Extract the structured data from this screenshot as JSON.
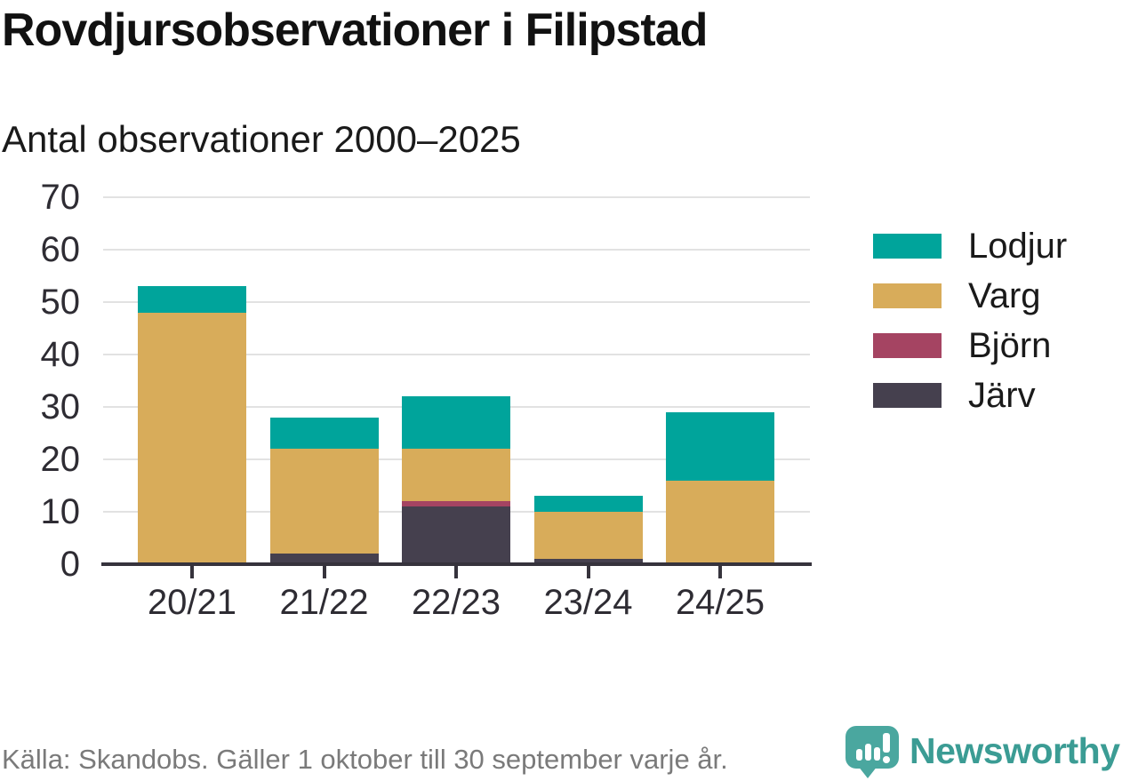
{
  "header": {
    "title": "Rovdjursobservationer i Filipstad",
    "subtitle": "Antal observationer 2000–2025"
  },
  "chart_data": {
    "type": "bar",
    "stacked": true,
    "title": "Rovdjursobservationer i Filipstad",
    "subtitle": "Antal observationer 2000–2025",
    "categories": [
      "20/21",
      "21/22",
      "22/23",
      "23/24",
      "24/25"
    ],
    "series": [
      {
        "name": "Lodjur",
        "color": "#00A49B",
        "values": [
          5,
          6,
          10,
          3,
          13
        ]
      },
      {
        "name": "Varg",
        "color": "#D8AC5A",
        "values": [
          48,
          20,
          10,
          9,
          16
        ]
      },
      {
        "name": "Björn",
        "color": "#A54462",
        "values": [
          0,
          0,
          1,
          0,
          0
        ]
      },
      {
        "name": "Järv",
        "color": "#45404E",
        "values": [
          0,
          2,
          11,
          1,
          0
        ]
      }
    ],
    "stack_order_bottom_to_top": [
      "Järv",
      "Björn",
      "Varg",
      "Lodjur"
    ],
    "totals": [
      53,
      28,
      32,
      13,
      29
    ],
    "xlabel": "",
    "ylabel": "",
    "ylim": [
      0,
      70
    ],
    "yticks": [
      0,
      10,
      20,
      30,
      40,
      50,
      60,
      70
    ],
    "grid": "horizontal",
    "legend_position": "right"
  },
  "legend": {
    "items": [
      "Lodjur",
      "Varg",
      "Björn",
      "Järv"
    ]
  },
  "footer": {
    "source_note": "Källa: Skandobs. Gäller 1 oktober till 30 september varje år.",
    "brand_name": "Newsworthy"
  },
  "colors": {
    "axis": "#36333C",
    "grid": "#E2E2E2",
    "text": "#1A1A1A",
    "muted_text": "#7A7A7A",
    "brand_teal": "#3B9C94",
    "logo_bubble": "#4AA79F"
  }
}
